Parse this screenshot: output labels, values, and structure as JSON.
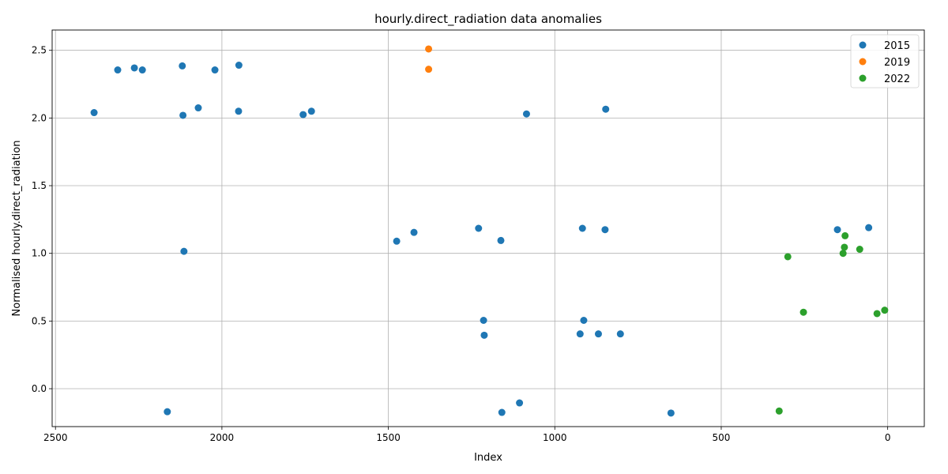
{
  "chart_data": {
    "type": "scatter",
    "title": "hourly.direct_radiation data anomalies",
    "xlabel": "Index",
    "ylabel": "Normalised hourly.direct_radiation",
    "xlim": [
      2510,
      -110
    ],
    "ylim": [
      -0.28,
      2.65
    ],
    "x_inverted": true,
    "x_ticks": [
      2500,
      2000,
      1500,
      1000,
      500,
      0
    ],
    "x_tick_labels": [
      "2500",
      "2000",
      "1500",
      "1000",
      "500",
      "0"
    ],
    "y_ticks": [
      0.0,
      0.5,
      1.0,
      1.5,
      2.0,
      2.5
    ],
    "y_tick_labels": [
      "0.0",
      "0.5",
      "1.0",
      "1.5",
      "2.0",
      "2.5"
    ],
    "grid": true,
    "legend_position": "top-right",
    "series": [
      {
        "name": "2015",
        "color": "#1f77b4",
        "points": [
          [
            2384,
            2.04
          ],
          [
            2313,
            2.355
          ],
          [
            2263,
            2.37
          ],
          [
            2239,
            2.355
          ],
          [
            2119,
            2.385
          ],
          [
            2021,
            2.355
          ],
          [
            1949,
            2.39
          ],
          [
            2117,
            2.02
          ],
          [
            2071,
            2.075
          ],
          [
            1950,
            2.05
          ],
          [
            1756,
            2.025
          ],
          [
            1731,
            2.05
          ],
          [
            1085,
            2.03
          ],
          [
            847,
            2.065
          ],
          [
            2114,
            1.015
          ],
          [
            1475,
            1.09
          ],
          [
            1423,
            1.155
          ],
          [
            1229,
            1.185
          ],
          [
            1162,
            1.095
          ],
          [
            917,
            1.185
          ],
          [
            849,
            1.175
          ],
          [
            151,
            1.175
          ],
          [
            57,
            1.19
          ],
          [
            1214,
            0.505
          ],
          [
            913,
            0.505
          ],
          [
            1212,
            0.395
          ],
          [
            924,
            0.405
          ],
          [
            869,
            0.405
          ],
          [
            803,
            0.405
          ],
          [
            2164,
            -0.17
          ],
          [
            1159,
            -0.175
          ],
          [
            1106,
            -0.105
          ],
          [
            651,
            -0.18
          ]
        ]
      },
      {
        "name": "2019",
        "color": "#ff7f0e",
        "points": [
          [
            1379,
            2.51
          ],
          [
            1379,
            2.36
          ]
        ]
      },
      {
        "name": "2022",
        "color": "#2ca02c",
        "points": [
          [
            300,
            0.975
          ],
          [
            253,
            0.565
          ],
          [
            326,
            -0.165
          ],
          [
            128,
            1.13
          ],
          [
            130,
            1.045
          ],
          [
            134,
            1.0
          ],
          [
            84,
            1.03
          ],
          [
            32,
            0.555
          ],
          [
            9,
            0.58
          ]
        ]
      }
    ]
  }
}
